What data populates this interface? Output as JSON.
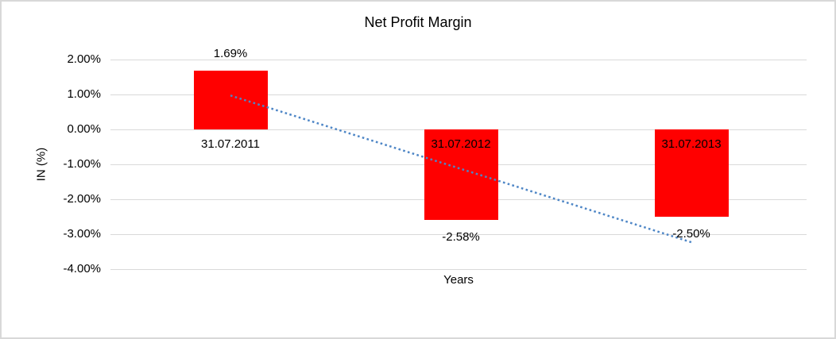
{
  "window": {
    "background_color": "#FFFFFF",
    "border_color": "#D8D8D8"
  },
  "chart_data": {
    "type": "bar",
    "title": "Net Profit Margin",
    "xlabel": "Years",
    "ylabel": "IN (%)",
    "categories": [
      "31.07.2011",
      "31.07.2012",
      "31.07.2013"
    ],
    "values": [
      1.69,
      -2.58,
      -2.5
    ],
    "data_labels": [
      "1.69%",
      "-2.58%",
      "-2.50%"
    ],
    "ylim": [
      -4,
      2
    ],
    "ytick_step": 1,
    "ytick_labels": [
      "2.00%",
      "1.00%",
      "0.00%",
      "-1.00%",
      "-2.00%",
      "-3.00%",
      "-4.00%"
    ],
    "grid": true,
    "legend": "none",
    "bar_color": "#FF0000",
    "gridline_color": "#D9D9D9",
    "text_color": "#000000",
    "trendline": {
      "style": "dotted",
      "color": "#4E86C6",
      "start_category_index": 0,
      "end_category_index": 2,
      "start_value": 0.97,
      "end_value": -3.23
    }
  }
}
